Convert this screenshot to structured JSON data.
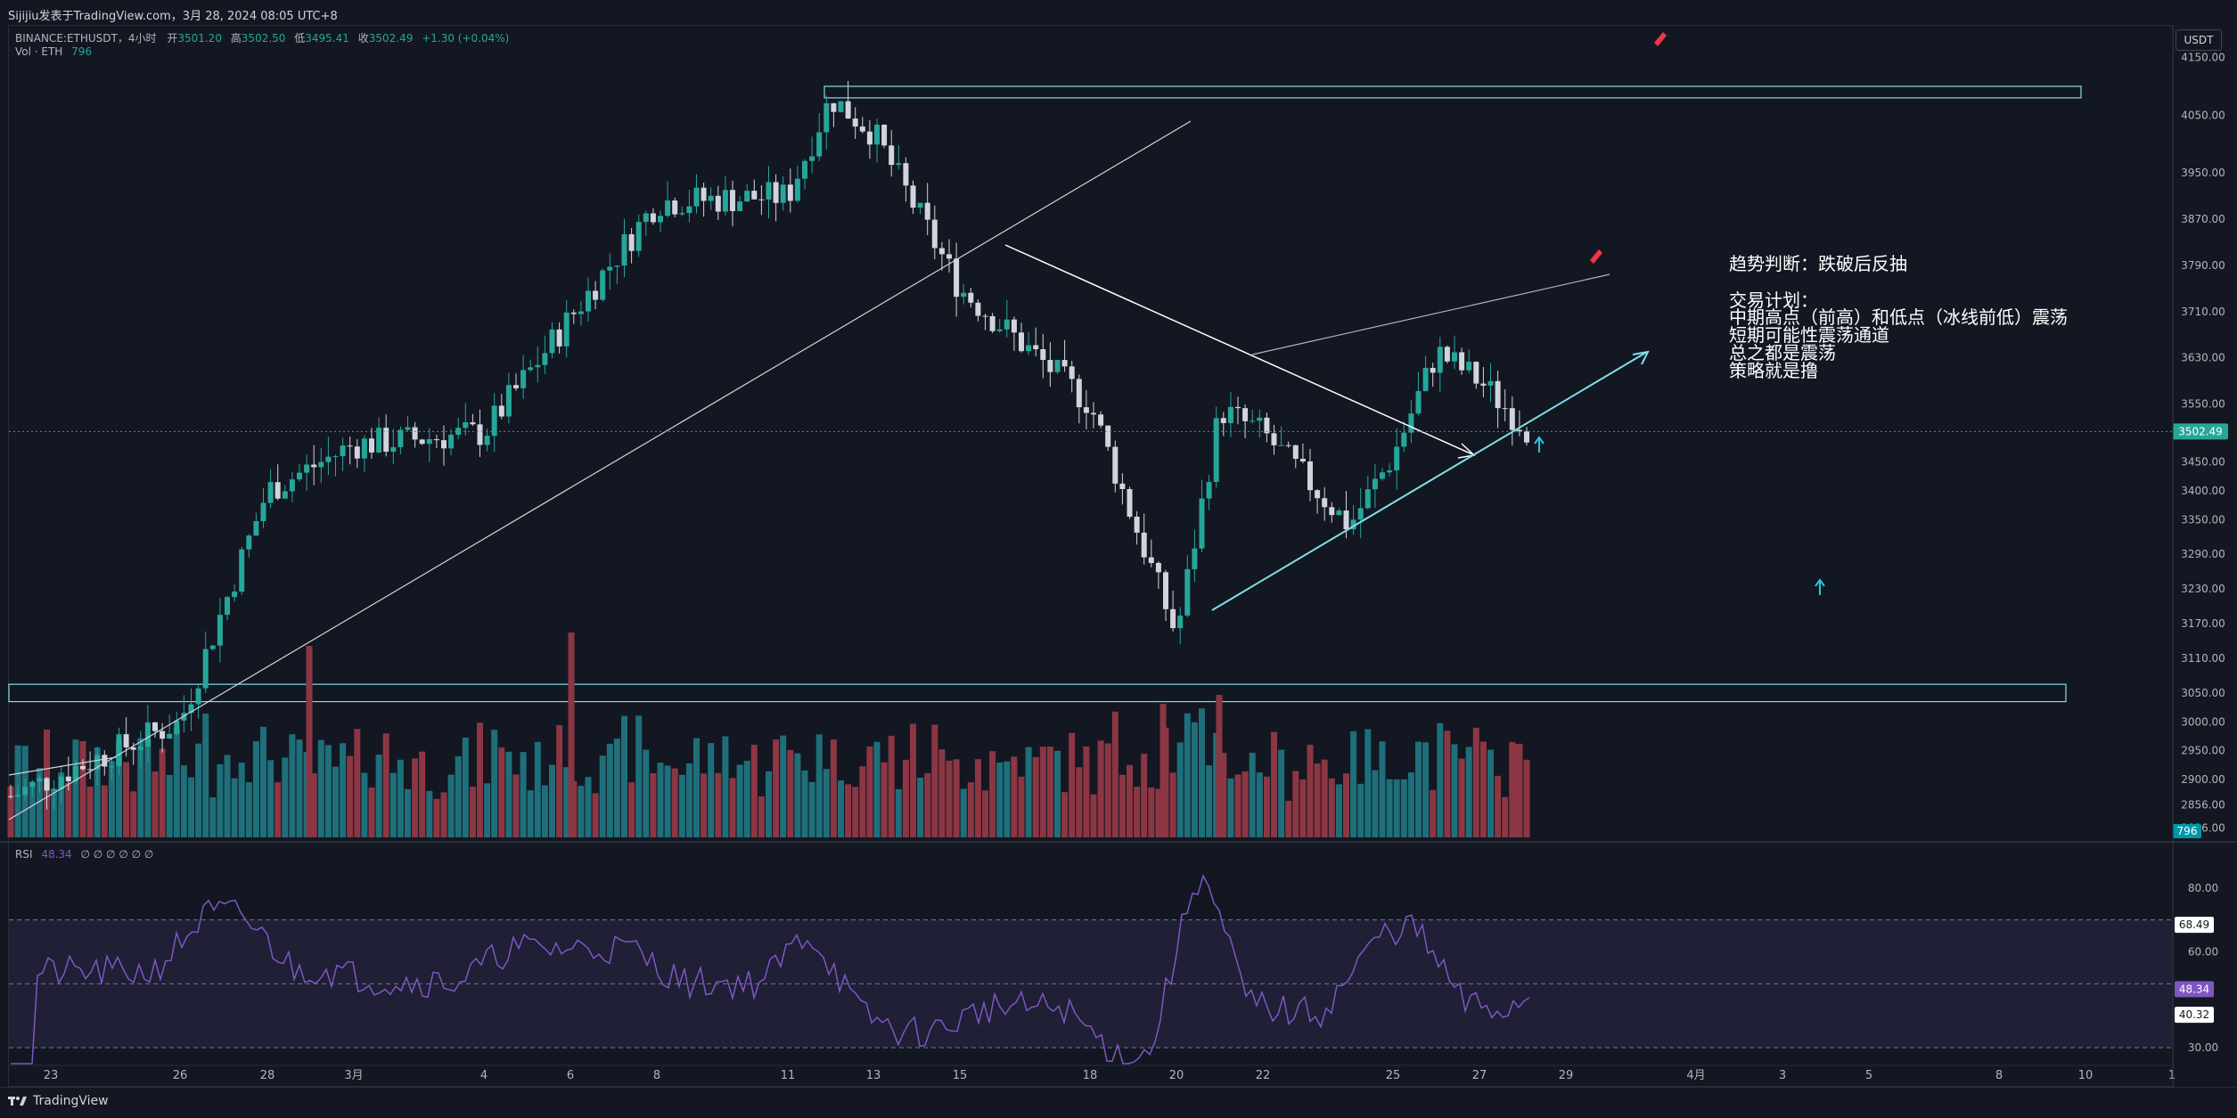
{
  "header": {
    "publisher": "Sijijiu发表于TradingView.com，3月 28, 2024 08:05 UTC+8"
  },
  "legend": {
    "symbol": "BINANCE:ETHUSDT，4小时",
    "open_label": "开",
    "open": "3501.20",
    "high_label": "高",
    "high": "3502.50",
    "low_label": "低",
    "low": "3495.41",
    "close_label": "收",
    "close": "3502.49",
    "change": "+1.30 (+0.04%)",
    "vol_label": "Vol · ETH",
    "vol_value": "796",
    "rsi_label": "RSI",
    "rsi_value": "48.34",
    "rsi_extra": "∅ ∅ ∅ ∅ ∅ ∅"
  },
  "currency_button": "USDT",
  "annotations": {
    "line1": "趋势判断：跌破后反抽",
    "line2": "交易计划：",
    "line3": "中期高点（前高）和低点（冰线前低）震荡",
    "line4": "短期可能性震荡通道",
    "line5": "总之都是震荡",
    "line6": "策略就是撸"
  },
  "price_axis": {
    "ticks": [
      "4150.00",
      "4050.00",
      "3950.00",
      "3870.00",
      "3790.00",
      "3710.00",
      "3630.00",
      "3550.00",
      "3450.00",
      "3400.00",
      "3350.00",
      "3290.00",
      "3230.00",
      "3170.00",
      "3110.00",
      "3050.00",
      "3000.00",
      "2950.00",
      "2900.00",
      "2856.00",
      "2816.00"
    ],
    "last_price": "3502.49",
    "volume_badge": "796"
  },
  "rsi_axis": {
    "ticks": [
      "80.00",
      "60.00",
      "30.00"
    ],
    "upper_badge": "68.49",
    "current_badge": "48.34",
    "lower_badge": "40.32"
  },
  "time_axis": {
    "ticks": [
      "23",
      "26",
      "28",
      "3月",
      "4",
      "6",
      "8",
      "11",
      "13",
      "15",
      "18",
      "20",
      "22",
      "25",
      "27",
      "29",
      "4月",
      "3",
      "5",
      "8",
      "10",
      "1"
    ]
  },
  "footer": {
    "brand": "TradingView"
  },
  "colors": {
    "background": "#131722",
    "up": "#26a69a",
    "down": "#ef5350",
    "vol_up": "#1e6f7a",
    "vol_down": "#8c3644",
    "rsi_line": "#7e57c2",
    "annotation_line": "#80deea"
  },
  "chart_data": {
    "type": "candlestick",
    "symbol": "BINANCE:ETHUSDT",
    "interval": "4小时",
    "price_range": [
      2800,
      4180
    ],
    "approx_close_path": [
      {
        "x": "23",
        "close": 2870
      },
      {
        "x": "26",
        "close": 3000
      },
      {
        "x": "28",
        "close": 3400
      },
      {
        "x": "3月",
        "close": 3480
      },
      {
        "x": "4",
        "close": 3500
      },
      {
        "x": "6",
        "close": 3700
      },
      {
        "x": "8",
        "close": 3900
      },
      {
        "x": "11",
        "close": 3910
      },
      {
        "x": "12",
        "close": 4080
      },
      {
        "x": "13",
        "close": 4020
      },
      {
        "x": "15",
        "close": 3750
      },
      {
        "x": "18",
        "close": 3550
      },
      {
        "x": "20",
        "close": 3150
      },
      {
        "x": "21",
        "close": 3540
      },
      {
        "x": "22",
        "close": 3500
      },
      {
        "x": "24",
        "close": 3340
      },
      {
        "x": "25",
        "close": 3460
      },
      {
        "x": "26",
        "close": 3640
      },
      {
        "x": "27",
        "close": 3590
      },
      {
        "x": "28",
        "close": 3502.49
      }
    ],
    "horizontal_zones": [
      {
        "from": 4080,
        "to": 4100
      },
      {
        "from": 3035,
        "to": 3065
      }
    ],
    "rsi": {
      "current": 48.34,
      "upper_band": 68.49,
      "lower_band": 40.32,
      "scale_ticks": [
        80,
        60,
        30
      ]
    }
  }
}
